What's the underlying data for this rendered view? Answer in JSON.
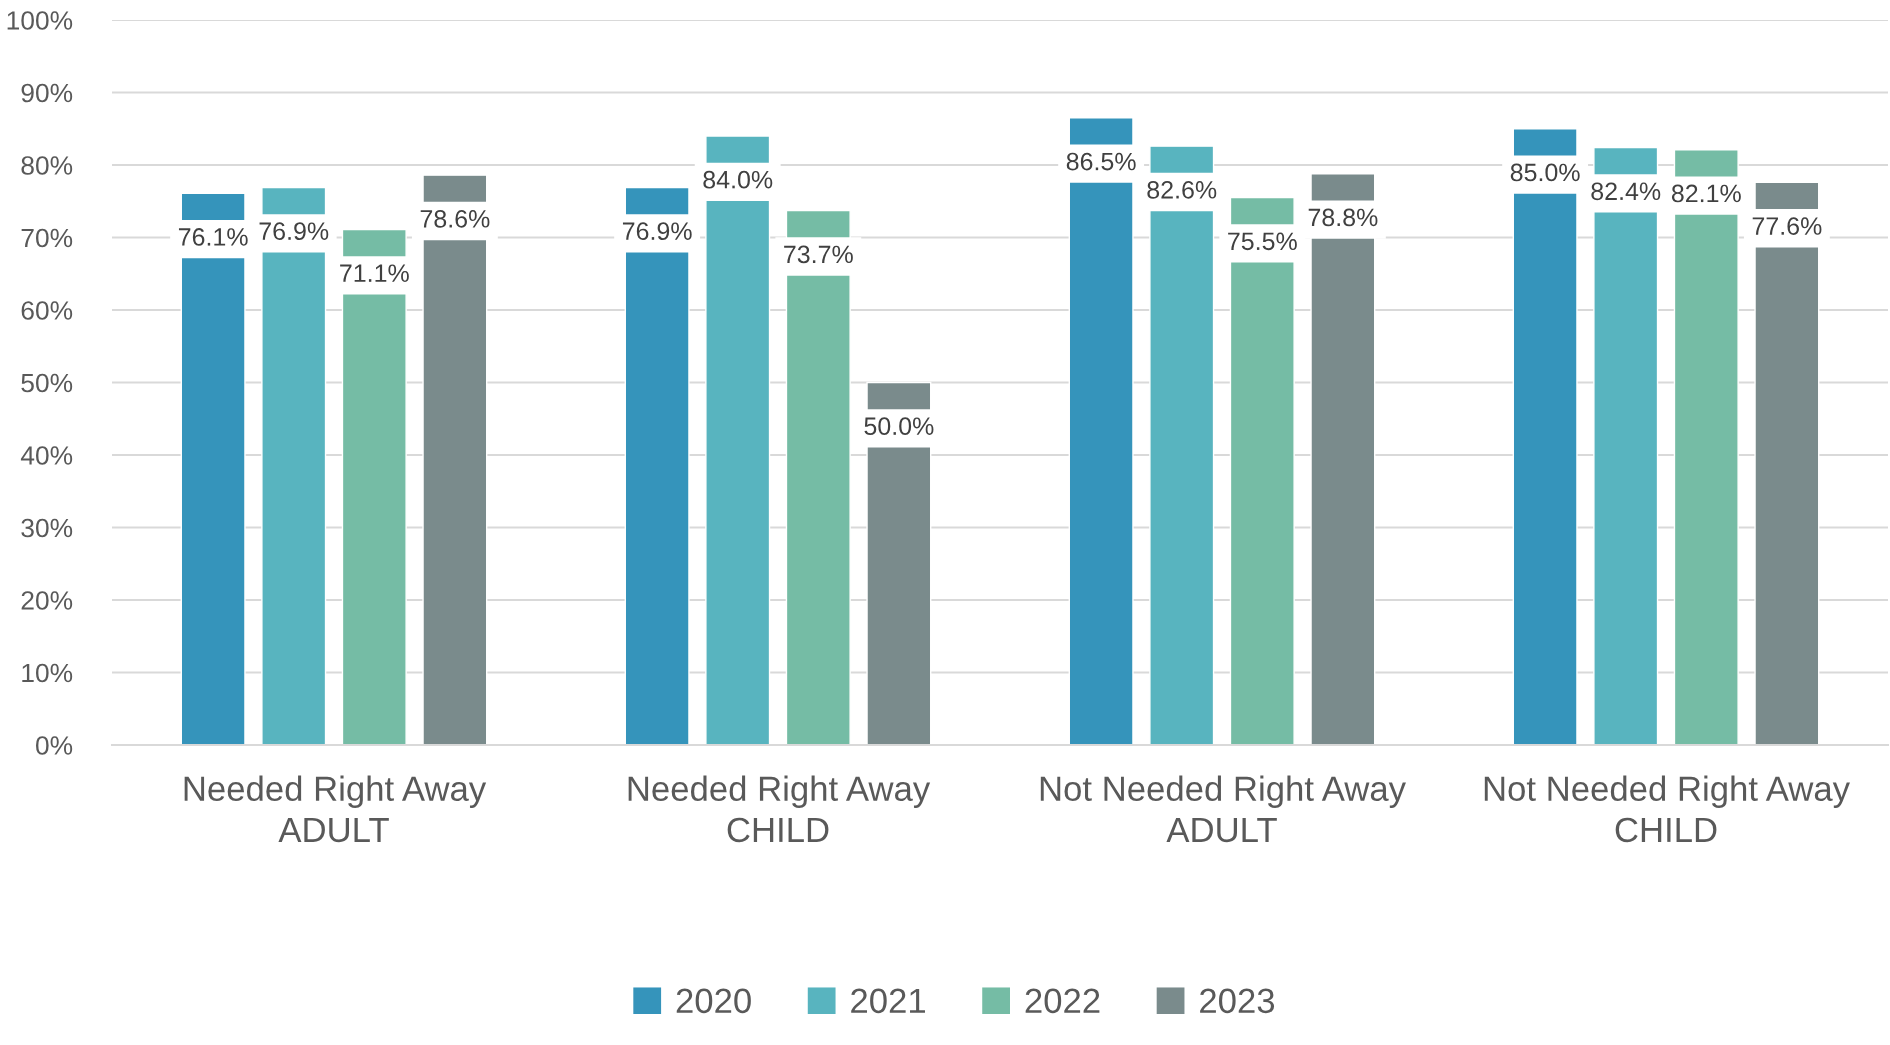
{
  "chart_data": {
    "type": "bar",
    "categories": [
      "Needed Right Away\nADULT",
      "Needed Right Away\nCHILD",
      "Not Needed Right Away\nADULT",
      "Not Needed Right Away\nCHILD"
    ],
    "series": [
      {
        "name": "2020",
        "color": "#3594bb",
        "values": [
          76.1,
          76.9,
          86.5,
          85.0
        ],
        "value_labels": [
          "76.1%",
          "76.9%",
          "86.5%",
          "85.0%"
        ]
      },
      {
        "name": "2021",
        "color": "#58b4bf",
        "values": [
          76.9,
          84.0,
          82.6,
          82.4
        ],
        "value_labels": [
          "76.9%",
          "84.0%",
          "82.6%",
          "82.4%"
        ]
      },
      {
        "name": "2022",
        "color": "#75bca5",
        "values": [
          71.1,
          73.7,
          75.5,
          82.1
        ],
        "value_labels": [
          "71.1%",
          "73.7%",
          "75.5%",
          "82.1%"
        ]
      },
      {
        "name": "2023",
        "color": "#7a8b8c",
        "values": [
          78.6,
          50.0,
          78.8,
          77.6
        ],
        "value_labels": [
          "78.6%",
          "50.0%",
          "78.8%",
          "77.6%"
        ]
      }
    ],
    "ylim": [
      0,
      100
    ],
    "yticks": [
      {
        "value": 0,
        "label": "0%"
      },
      {
        "value": 10,
        "label": "10%"
      },
      {
        "value": 20,
        "label": "20%"
      },
      {
        "value": 30,
        "label": "30%"
      },
      {
        "value": 40,
        "label": "40%"
      },
      {
        "value": 50,
        "label": "50%"
      },
      {
        "value": 60,
        "label": "60%"
      },
      {
        "value": 70,
        "label": "70%"
      },
      {
        "value": 80,
        "label": "80%"
      },
      {
        "value": 90,
        "label": "90%"
      },
      {
        "value": 100,
        "label": "100%"
      }
    ],
    "grid": "y",
    "legend": "bottom"
  }
}
